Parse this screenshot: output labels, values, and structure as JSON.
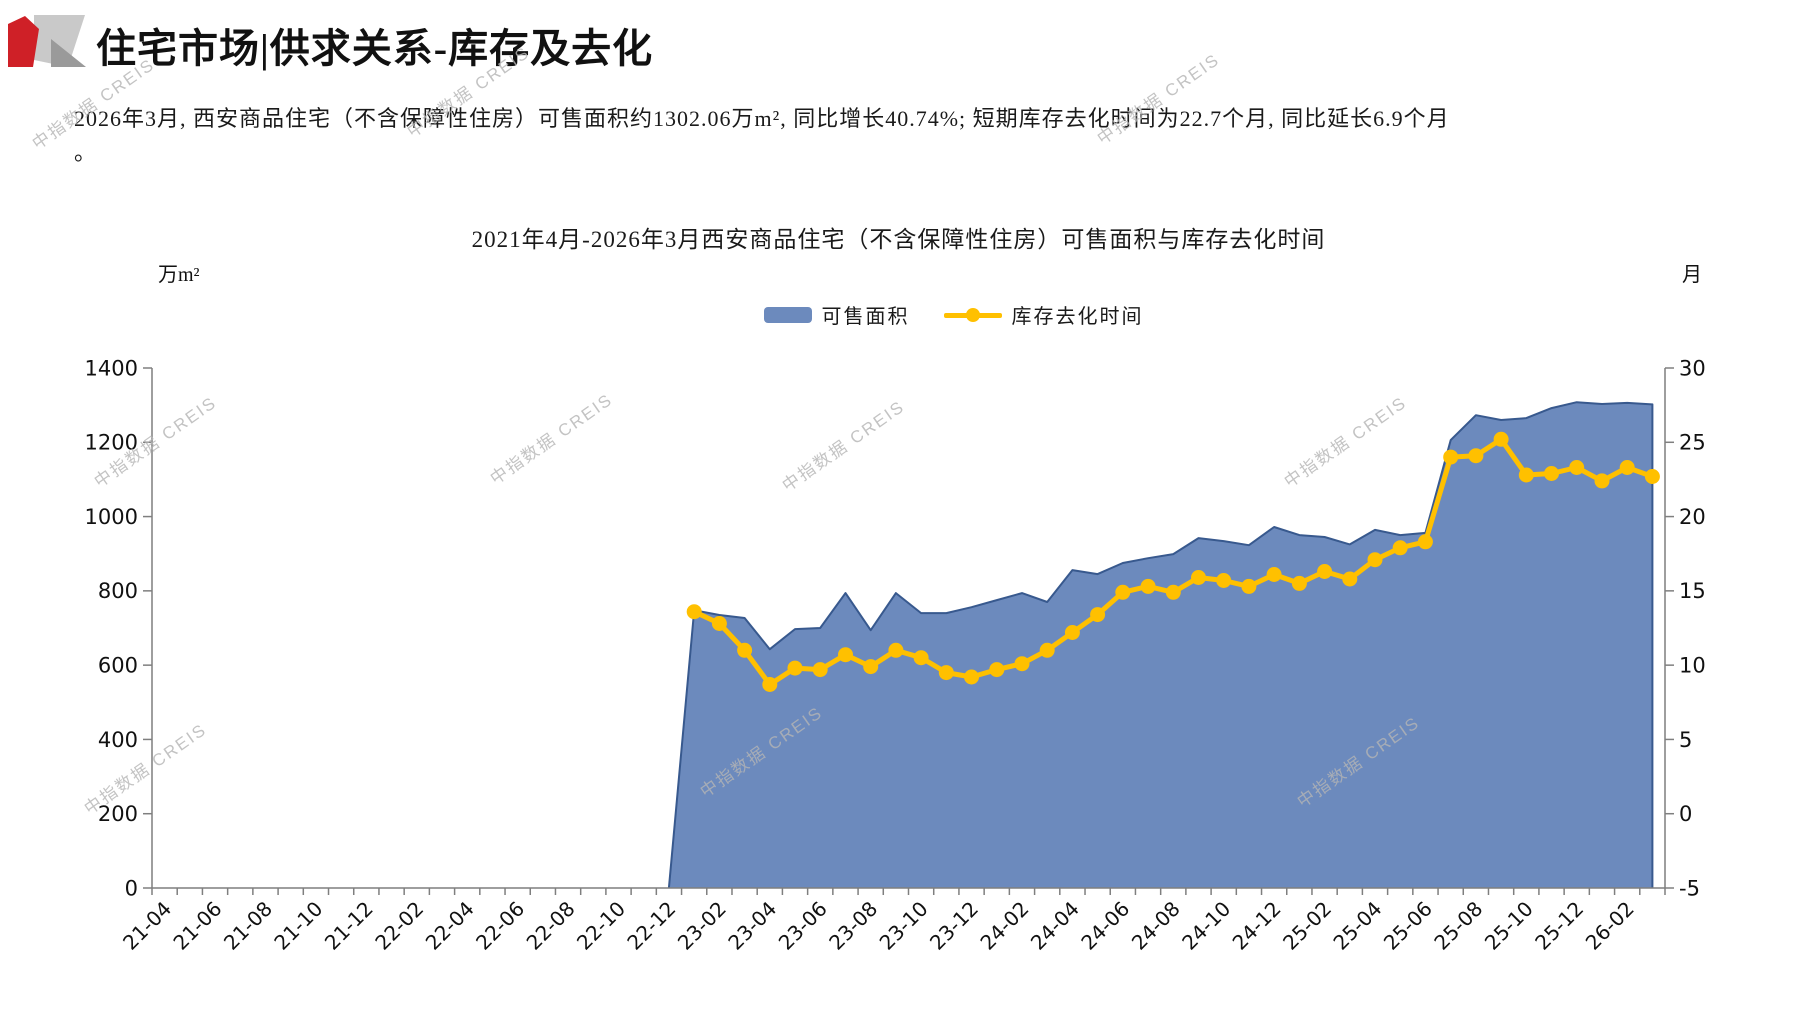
{
  "header": {
    "title": "住宅市场|供求关系-库存及去化"
  },
  "intro": {
    "line1": "2026年3月, 西安商品住宅（不含保障性住房）可售面积约1302.06万m², 同比增长40.74%; 短期库存去化时间为22.7个月, 同比延长6.9个月",
    "line2": "。"
  },
  "watermark": {
    "text": "中指数据 CREIS"
  },
  "colors": {
    "accent_red": "#CF2027",
    "logo_gray_light": "#C9C9C9",
    "logo_gray_dark": "#9A9A9A",
    "area_fill": "#6C8ABD",
    "area_outline": "#38598E",
    "line_gold": "#FFC000",
    "axis_gray": "#7F7F7F"
  },
  "chart_data": {
    "type": "combo",
    "subtypes": [
      "area",
      "line"
    ],
    "title": "2021年4月-2026年3月西安商品住宅（不含保障性住房）可售面积与库存去化时间",
    "legend_position": "top",
    "grid": false,
    "left_axis": {
      "unit": "万m²",
      "min": 0,
      "max": 1400,
      "step": 200
    },
    "right_axis": {
      "unit": "月",
      "min": -5,
      "max": 30,
      "step": 5
    },
    "label_interval": 2,
    "categories": [
      "21-04",
      "21-05",
      "21-06",
      "21-07",
      "21-08",
      "21-09",
      "21-10",
      "21-11",
      "21-12",
      "22-01",
      "22-02",
      "22-03",
      "22-04",
      "22-05",
      "22-06",
      "22-07",
      "22-08",
      "22-09",
      "22-10",
      "22-11",
      "22-12",
      "23-01",
      "23-02",
      "23-03",
      "23-04",
      "23-05",
      "23-06",
      "23-07",
      "23-08",
      "23-09",
      "23-10",
      "23-11",
      "23-12",
      "24-01",
      "24-02",
      "24-03",
      "24-04",
      "24-05",
      "24-06",
      "24-07",
      "24-08",
      "24-09",
      "24-10",
      "24-11",
      "24-12",
      "25-01",
      "25-02",
      "25-03",
      "25-04",
      "25-05",
      "25-06",
      "25-07",
      "25-08",
      "25-09",
      "25-10",
      "25-11",
      "25-12",
      "26-01",
      "26-02",
      "26-03"
    ],
    "series": [
      {
        "name": "可售面积",
        "type": "area",
        "axis": "left",
        "color": "#6C8ABD",
        "line_color": "#38598E",
        "values": [
          null,
          null,
          null,
          null,
          null,
          null,
          null,
          null,
          null,
          null,
          null,
          null,
          null,
          null,
          null,
          null,
          null,
          null,
          null,
          null,
          null,
          748,
          735,
          727,
          643,
          697,
          700,
          794,
          694,
          794,
          740,
          740,
          756,
          775,
          794,
          770,
          856,
          845,
          875,
          888,
          899,
          942,
          934,
          923,
          972,
          950,
          945,
          925,
          964,
          950,
          956,
          1206,
          1273,
          1260,
          1265,
          1292,
          1308,
          1303,
          1306,
          1302.06
        ]
      },
      {
        "name": "库存去化时间",
        "type": "line",
        "axis": "right",
        "color": "#FFC000",
        "values": [
          null,
          null,
          null,
          null,
          null,
          null,
          null,
          null,
          null,
          null,
          null,
          null,
          null,
          null,
          null,
          null,
          null,
          null,
          null,
          null,
          null,
          13.6,
          12.8,
          11.0,
          8.7,
          9.8,
          9.7,
          10.7,
          9.9,
          11.0,
          10.5,
          9.5,
          9.2,
          9.7,
          10.1,
          11.0,
          12.2,
          13.4,
          14.9,
          15.3,
          14.9,
          15.9,
          15.7,
          15.3,
          16.1,
          15.5,
          16.3,
          15.8,
          17.1,
          17.9,
          18.3,
          24.0,
          24.1,
          25.2,
          22.8,
          22.9,
          23.3,
          22.4,
          23.3,
          22.7
        ]
      }
    ]
  }
}
